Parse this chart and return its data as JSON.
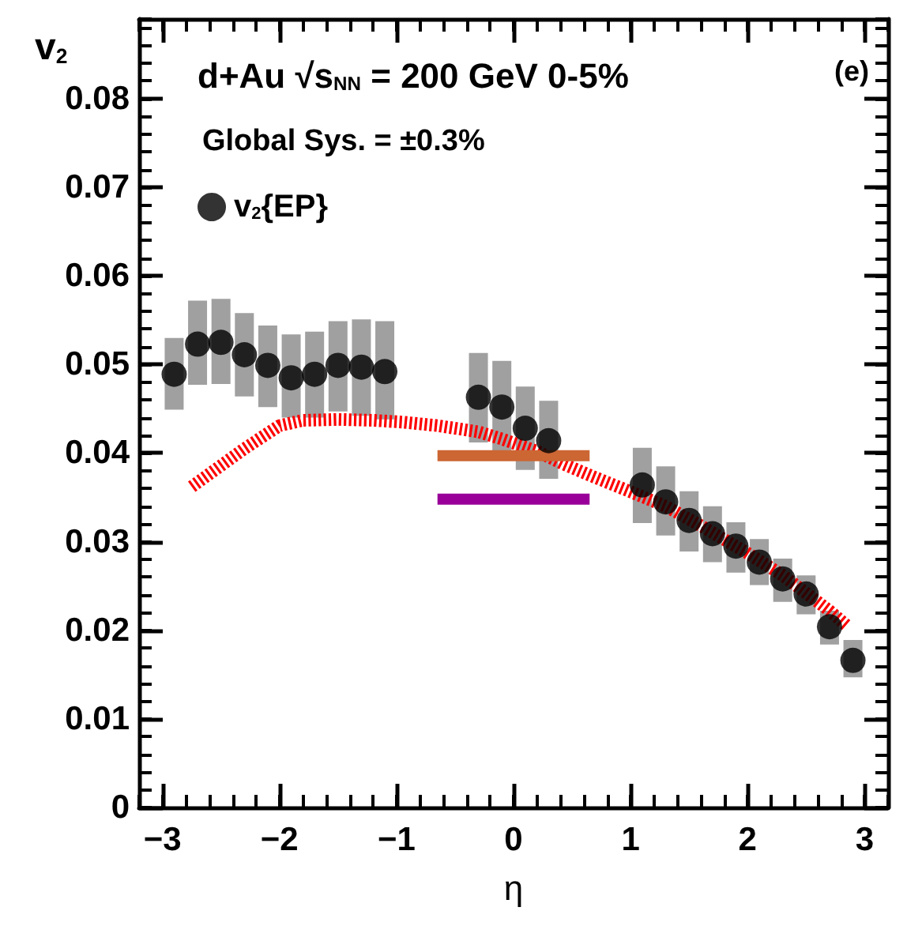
{
  "chart_data": {
    "type": "scatter",
    "title": "d+Au √s$_{NN}$ = 200 GeV 0-5%",
    "annotations": [
      "Global Sys. = ±0.3%",
      "(e)"
    ],
    "xlabel": "η",
    "ylabel": "v$_{2}$",
    "xlim": [
      -3.2,
      3.2
    ],
    "xticks": [
      -3,
      -2,
      -1,
      0,
      1,
      2,
      3
    ],
    "ylim": [
      0,
      0.089
    ],
    "yticks": [
      0,
      0.01,
      0.02,
      0.03,
      0.04,
      0.05,
      0.06,
      0.07,
      0.08
    ],
    "legend": "top left",
    "marker": "circle",
    "grid": false,
    "series": [
      {
        "name": "v$_{2}${EP}",
        "type": "scatter",
        "color": "#000000",
        "x": [
          -2.9,
          -2.7,
          -2.5,
          -2.3,
          -2.1,
          -1.9,
          -1.7,
          -1.5,
          -1.3,
          -1.1,
          -0.3,
          -0.1,
          0.1,
          0.3,
          1.1,
          1.3,
          1.5,
          1.7,
          1.9,
          2.1,
          2.3,
          2.5,
          2.7,
          2.9
        ],
        "values": [
          0.0489,
          0.0523,
          0.0525,
          0.0511,
          0.0499,
          0.0485,
          0.0489,
          0.0499,
          0.0497,
          0.0492,
          0.0463,
          0.0452,
          0.0428,
          0.0414,
          0.0364,
          0.0345,
          0.0324,
          0.0309,
          0.0295,
          0.0277,
          0.0258,
          0.0241,
          0.0204,
          0.0166
        ],
        "errors": [
          [
            0.0449,
            0.053
          ],
          [
            0.0477,
            0.0572
          ],
          [
            0.0478,
            0.0574
          ],
          [
            0.0464,
            0.0558
          ],
          [
            0.0452,
            0.0544
          ],
          [
            0.044,
            0.0534
          ],
          [
            0.044,
            0.0537
          ],
          [
            0.0447,
            0.0549
          ],
          [
            0.0442,
            0.0551
          ],
          [
            0.0438,
            0.0549
          ],
          [
            0.0412,
            0.0513
          ],
          [
            0.0402,
            0.0504
          ],
          [
            0.0381,
            0.0475
          ],
          [
            0.0371,
            0.0459
          ],
          [
            0.0321,
            0.0406
          ],
          [
            0.0307,
            0.0385
          ],
          [
            0.0289,
            0.0357
          ],
          [
            0.0277,
            0.034
          ],
          [
            0.0265,
            0.0322
          ],
          [
            0.0251,
            0.0303
          ],
          [
            0.0232,
            0.0281
          ],
          [
            0.0218,
            0.0262
          ],
          [
            0.0184,
            0.0222
          ],
          [
            0.0147,
            0.0189
          ]
        ]
      },
      {
        "type": "line",
        "marker": "none",
        "color": "#ff0000",
        "line_style": "dashed",
        "x": [
          -2.75,
          -2.3,
          -2.0,
          -1.8,
          -1.5,
          -1.2,
          -0.95,
          -0.65,
          -0.3,
          -0.1,
          0.2,
          0.42,
          0.67,
          0.95,
          1.3,
          1.6,
          2.0,
          2.3,
          2.5,
          2.7,
          2.85
        ],
        "values": [
          0.0362,
          0.0405,
          0.0431,
          0.0437,
          0.0438,
          0.0437,
          0.0435,
          0.0431,
          0.0424,
          0.0416,
          0.0402,
          0.0388,
          0.0374,
          0.0359,
          0.034,
          0.0318,
          0.0287,
          0.0262,
          0.0242,
          0.0222,
          0.0205
        ]
      },
      {
        "type": "line",
        "marker": "none",
        "color": "#cc6633",
        "x": [
          -0.65,
          0.65
        ],
        "values": [
          0.0397,
          0.0397
        ]
      },
      {
        "type": "line",
        "marker": "none",
        "color": "#990099",
        "x": [
          -0.65,
          0.65
        ],
        "values": [
          0.0348,
          0.0348
        ]
      }
    ]
  }
}
